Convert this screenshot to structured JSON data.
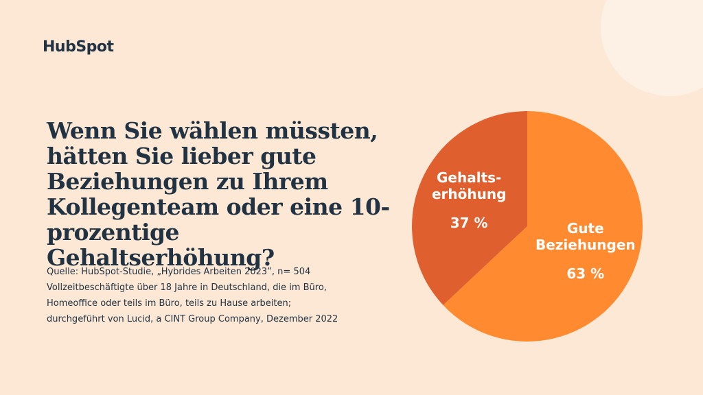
{
  "logo": "HubSpot",
  "chart_data": {
    "type": "pie",
    "title": "Wenn Sie wählen müssten,\nhätten Sie lieber gute\nBeziehungen zu Ihrem\nKollegenteam oder eine 10-\nprozentige Gehaltserhöhung?",
    "source": "Quelle: HubSpot-Studie, „Hybrides Arbeiten 2023”, n= 504\nVollzeitbeschäftigte über 18 Jahre in Deutschland, die im Büro,\nHomeoffice oder teils im Büro, teils zu Hause arbeiten;\ndurchgeführt von Lucid, a CINT Group Company, Dezember 2022",
    "categories": [
      "Gehalts-\nerhöhung",
      "Gute\nBeziehungen"
    ],
    "values": [
      37,
      63
    ],
    "value_labels": [
      "37 %",
      "63 %"
    ],
    "colors": [
      "#e05f2f",
      "#ff8a30"
    ]
  }
}
